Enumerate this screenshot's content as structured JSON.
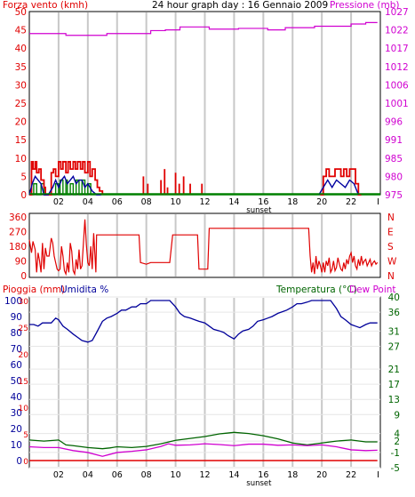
{
  "colors": {
    "bg": "#ffffff",
    "frame": "#000000",
    "grid": "#c8c8c8",
    "wind": "#e00000",
    "gust_avg": "#0000a0",
    "wind_low": "#008000",
    "pressure": "#d000d0",
    "direction": "#e00000",
    "rain": "#e00000",
    "humidity": "#00009a",
    "temperature": "#006400",
    "dewpoint": "#d000d0",
    "left_label": "#e00000",
    "right_label": "#d000d0"
  },
  "header": {
    "left_label": "Forza vento (kmh)",
    "title": "24 hour graph day : 16 Gennaio 2009",
    "right_label": "Pressione (mb)"
  },
  "bottom_header": {
    "rain_label": "Pioggia (mm)",
    "humidity_label": "Umidita %",
    "temp_label": "Temperatura (°C)",
    "dew_label": "Dew Point"
  },
  "markers": {
    "sunset_top": "sunset",
    "sunset_bottom": "sunset"
  },
  "chart_data": [
    {
      "type": "line",
      "panel": "wind",
      "x_axis": {
        "hours": [
          2,
          4,
          6,
          8,
          10,
          12,
          14,
          16,
          18,
          20,
          22
        ],
        "tick_labels": [
          "02",
          "04",
          "06",
          "08",
          "10",
          "12",
          "14",
          "16",
          "18",
          "20",
          "22"
        ],
        "end_label": "I"
      },
      "y_left": {
        "ticks": [
          0,
          5,
          10,
          15,
          20,
          25,
          30,
          35,
          40,
          45,
          50
        ],
        "range": [
          0,
          50
        ]
      },
      "y_right": {
        "ticks": [
          975,
          980,
          985,
          991,
          996,
          1001,
          1006,
          1012,
          1017,
          1022,
          1027
        ],
        "range": [
          975,
          1027
        ]
      },
      "pressure": {
        "x": [
          0,
          2.0,
          2.5,
          5.0,
          5.3,
          8.0,
          8.3,
          9.0,
          9.3,
          10.0,
          10.3,
          12.0,
          12.3,
          14.0,
          14.3,
          16.0,
          16.3,
          17.0,
          17.5,
          19.0,
          19.5,
          21.5,
          22.0,
          22.5,
          23.0,
          23.8
        ],
        "y": [
          1021,
          1021,
          1020.5,
          1020.5,
          1021,
          1021,
          1021.8,
          1021.8,
          1022,
          1022,
          1022.8,
          1022.8,
          1022.2,
          1022.2,
          1022.4,
          1022.4,
          1022,
          1022,
          1022.6,
          1022.6,
          1023,
          1023,
          1023.6,
          1023.6,
          1024,
          1024
        ]
      },
      "wind_max": {
        "x": [
          0,
          0.15,
          0.25,
          0.4,
          0.5,
          0.65,
          0.8,
          1.0,
          1.1,
          1.2,
          1.35,
          1.5,
          1.65,
          1.8,
          2.0,
          2.15,
          2.3,
          2.5,
          2.65,
          2.8,
          3.0,
          3.15,
          3.3,
          3.5,
          3.65,
          3.8,
          4.0,
          4.15,
          4.3,
          4.5,
          4.65,
          4.8,
          5.0
        ],
        "y": [
          0,
          9,
          7,
          9,
          6,
          7,
          4,
          2,
          0,
          0,
          0,
          6,
          7,
          5,
          9,
          7,
          9,
          6,
          9,
          7,
          9,
          7,
          9,
          7,
          9,
          6,
          9,
          5,
          7,
          4,
          2,
          1,
          0
        ]
      },
      "wind_max_spikes": [
        [
          7.8,
          5
        ],
        [
          8.1,
          3
        ],
        [
          9.0,
          4
        ],
        [
          9.25,
          7
        ],
        [
          9.45,
          2
        ],
        [
          10.0,
          6
        ],
        [
          10.25,
          3
        ],
        [
          10.55,
          5
        ],
        [
          11.0,
          3
        ],
        [
          11.8,
          3
        ]
      ],
      "wind_max_tail": {
        "x": [
          19.9,
          20.1,
          20.3,
          20.5,
          20.7,
          20.9,
          21.1,
          21.3,
          21.5,
          21.7,
          21.9,
          22.1,
          22.3,
          22.5,
          22.7
        ],
        "y": [
          0,
          5,
          7,
          5,
          5,
          7,
          7,
          5,
          7,
          5,
          7,
          7,
          3,
          0,
          0
        ]
      },
      "wind_avg": {
        "x": [
          0,
          0.2,
          0.4,
          0.6,
          0.8,
          1.0,
          1.3,
          1.6,
          1.8,
          2.0,
          2.2,
          2.4,
          2.6,
          2.8,
          3.0,
          3.2,
          3.4,
          3.6,
          3.8,
          4.0,
          4.3,
          4.6,
          4.9
        ],
        "y": [
          0,
          3,
          5,
          4,
          3,
          0,
          0,
          2,
          4,
          2,
          4,
          5,
          3,
          4,
          5,
          3,
          4,
          4,
          2,
          3,
          1,
          0,
          0
        ]
      },
      "wind_avg_tail": {
        "x": [
          19.8,
          20.1,
          20.4,
          20.7,
          21.0,
          21.3,
          21.6,
          21.9,
          22.2,
          22.5
        ],
        "y": [
          0,
          2,
          4,
          2,
          4,
          3,
          2,
          4,
          3,
          0
        ]
      },
      "wind_low": {
        "x": [
          0,
          0.3,
          0.5,
          0.8,
          1.0,
          1.5,
          1.8,
          2.0,
          2.1,
          2.3,
          2.5,
          2.6,
          2.8,
          3.0,
          3.2,
          3.4,
          3.6,
          3.8,
          4.0,
          4.2,
          4.4,
          24
        ],
        "y": [
          0,
          3,
          0,
          3,
          0,
          0,
          3,
          0,
          4,
          0,
          4,
          0,
          3,
          0,
          4,
          0,
          4,
          0,
          3,
          0,
          0,
          0
        ]
      }
    },
    {
      "type": "line",
      "panel": "wind_direction",
      "y_left": {
        "ticks": [
          0,
          90,
          180,
          270,
          360
        ],
        "range": [
          0,
          360
        ]
      },
      "y_right": {
        "ticks": [
          "N",
          "E",
          "S",
          "W",
          "N"
        ]
      },
      "direction": {
        "x": [
          0,
          0.15,
          0.25,
          0.4,
          0.5,
          0.6,
          0.7,
          0.8,
          0.9,
          1.0,
          1.1,
          1.2,
          1.35,
          1.5,
          1.6,
          1.7,
          1.8,
          1.9,
          2.0,
          2.1,
          2.2,
          2.3,
          2.4,
          2.5,
          2.6,
          2.7,
          2.8,
          2.9,
          3.0,
          3.1,
          3.2,
          3.3,
          3.4,
          3.5,
          3.6,
          3.7,
          3.8,
          3.9,
          4.0,
          4.1,
          4.2,
          4.3,
          4.4,
          4.55,
          4.6,
          7.5,
          7.6,
          8.0,
          8.3,
          9.6,
          9.8,
          11.5,
          11.6,
          12.2,
          12.3,
          19.1,
          19.2,
          19.3,
          19.4,
          19.5,
          19.6,
          19.7,
          19.8,
          19.9,
          20.0,
          20.1,
          20.2,
          20.3,
          20.4,
          20.5,
          20.6,
          20.7,
          20.8,
          20.9,
          21.0,
          21.1,
          21.2,
          21.3,
          21.4,
          21.5,
          21.6,
          21.7,
          21.8,
          21.9,
          22.0,
          22.1,
          22.2,
          22.3,
          22.4,
          22.5,
          22.6,
          22.7,
          22.8,
          22.9,
          23.0,
          23.1,
          23.2,
          23.3,
          23.4,
          23.5,
          23.6,
          23.7,
          23.8
        ],
        "y": [
          220,
          140,
          210,
          160,
          20,
          140,
          90,
          20,
          200,
          40,
          170,
          120,
          120,
          230,
          200,
          120,
          80,
          40,
          30,
          40,
          180,
          120,
          30,
          10,
          80,
          20,
          200,
          150,
          30,
          10,
          100,
          40,
          160,
          40,
          60,
          200,
          345,
          190,
          80,
          60,
          180,
          40,
          260,
          20,
          250,
          250,
          80,
          70,
          80,
          80,
          250,
          250,
          40,
          40,
          290,
          290,
          120,
          20,
          80,
          10,
          120,
          40,
          90,
          60,
          20,
          80,
          20,
          90,
          60,
          110,
          20,
          40,
          90,
          30,
          50,
          110,
          70,
          40,
          30,
          80,
          40,
          100,
          70,
          120,
          140,
          80,
          120,
          60,
          40,
          100,
          60,
          120,
          70,
          90,
          100,
          60,
          80,
          100,
          60,
          80,
          90,
          70,
          80
        ]
      }
    },
    {
      "type": "line",
      "panel": "temperature_humidity",
      "y_left_rain": {
        "ticks": [
          0,
          5,
          10,
          15,
          20,
          25,
          30
        ],
        "range": [
          0,
          30
        ]
      },
      "y_left_humidity": {
        "ticks": [
          0,
          10,
          20,
          30,
          40,
          50,
          60,
          70,
          80,
          90,
          100
        ]
      },
      "y_right": {
        "ticks": [
          -5,
          -1,
          2,
          4,
          9,
          13,
          17,
          21,
          27,
          31,
          36,
          40
        ],
        "range": [
          -5,
          40
        ]
      },
      "humidity": {
        "x": [
          0,
          0.3,
          0.6,
          0.9,
          1.2,
          1.5,
          1.8,
          2.0,
          2.3,
          2.6,
          3.0,
          3.3,
          3.6,
          4.0,
          4.3,
          4.6,
          5.0,
          5.3,
          5.6,
          6.0,
          6.3,
          6.6,
          7.0,
          7.3,
          7.6,
          8.0,
          8.3,
          8.6,
          9.0,
          9.3,
          9.6,
          10.0,
          10.3,
          10.6,
          11.0,
          11.3,
          11.6,
          12.0,
          12.3,
          12.6,
          13.0,
          13.3,
          13.6,
          14.0,
          14.3,
          14.6,
          15.0,
          15.3,
          15.6,
          16.0,
          16.3,
          16.6,
          17.0,
          17.3,
          17.6,
          18.0,
          18.3,
          18.6,
          19.0,
          19.3,
          19.6,
          20.0,
          20.3,
          20.6,
          21.0,
          21.3,
          21.6,
          22.0,
          22.3,
          22.6,
          23.0,
          23.3,
          23.6,
          23.8
        ],
        "y": [
          85,
          85,
          84,
          86,
          86,
          86,
          89,
          88,
          84,
          82,
          79,
          77,
          75,
          74,
          75,
          80,
          87,
          89,
          90,
          92,
          94,
          94,
          96,
          96,
          98,
          98,
          100,
          100,
          100,
          100,
          100,
          96,
          92,
          90,
          89,
          88,
          87,
          86,
          84,
          82,
          81,
          80,
          78,
          76,
          79,
          81,
          82,
          84,
          87,
          88,
          89,
          90,
          92,
          93,
          94,
          96,
          98,
          98,
          99,
          100,
          100,
          100,
          100,
          100,
          95,
          90,
          88,
          85,
          84,
          83,
          85,
          86,
          86,
          86
        ]
      },
      "temperature": {
        "x": [
          0,
          1,
          2,
          2.5,
          3,
          4,
          5,
          5.5,
          6,
          7,
          8,
          9,
          10,
          11,
          12,
          13,
          14,
          15,
          16,
          17,
          18,
          19,
          20,
          21,
          22,
          23,
          23.8
        ],
        "y": [
          2.3,
          2.0,
          2.3,
          1.0,
          0.8,
          0.3,
          0.0,
          0.2,
          0.5,
          0.3,
          0.6,
          1.3,
          2.2,
          2.7,
          3.2,
          3.9,
          4.3,
          4.0,
          3.4,
          2.6,
          1.5,
          1.0,
          1.5,
          2.0,
          2.3,
          1.8,
          1.8
        ]
      },
      "dewpoint": {
        "x": [
          0,
          1,
          2,
          3,
          4,
          5,
          5.5,
          6,
          7,
          8,
          9,
          9.5,
          10,
          11,
          12,
          13,
          14,
          15,
          16,
          17,
          18,
          19,
          20,
          21,
          22,
          23,
          23.8
        ],
        "y": [
          0.5,
          0.3,
          0.3,
          -0.5,
          -1.0,
          -2.0,
          -1.5,
          -1.0,
          -0.7,
          -0.3,
          0.6,
          1.3,
          0.9,
          1.0,
          1.3,
          1.1,
          0.8,
          1.2,
          1.2,
          0.9,
          1.0,
          0.8,
          1.0,
          0.5,
          -0.3,
          -0.5,
          -0.4
        ]
      },
      "rain": {
        "x": [
          0,
          23.8
        ],
        "y": [
          0,
          0
        ]
      }
    }
  ]
}
